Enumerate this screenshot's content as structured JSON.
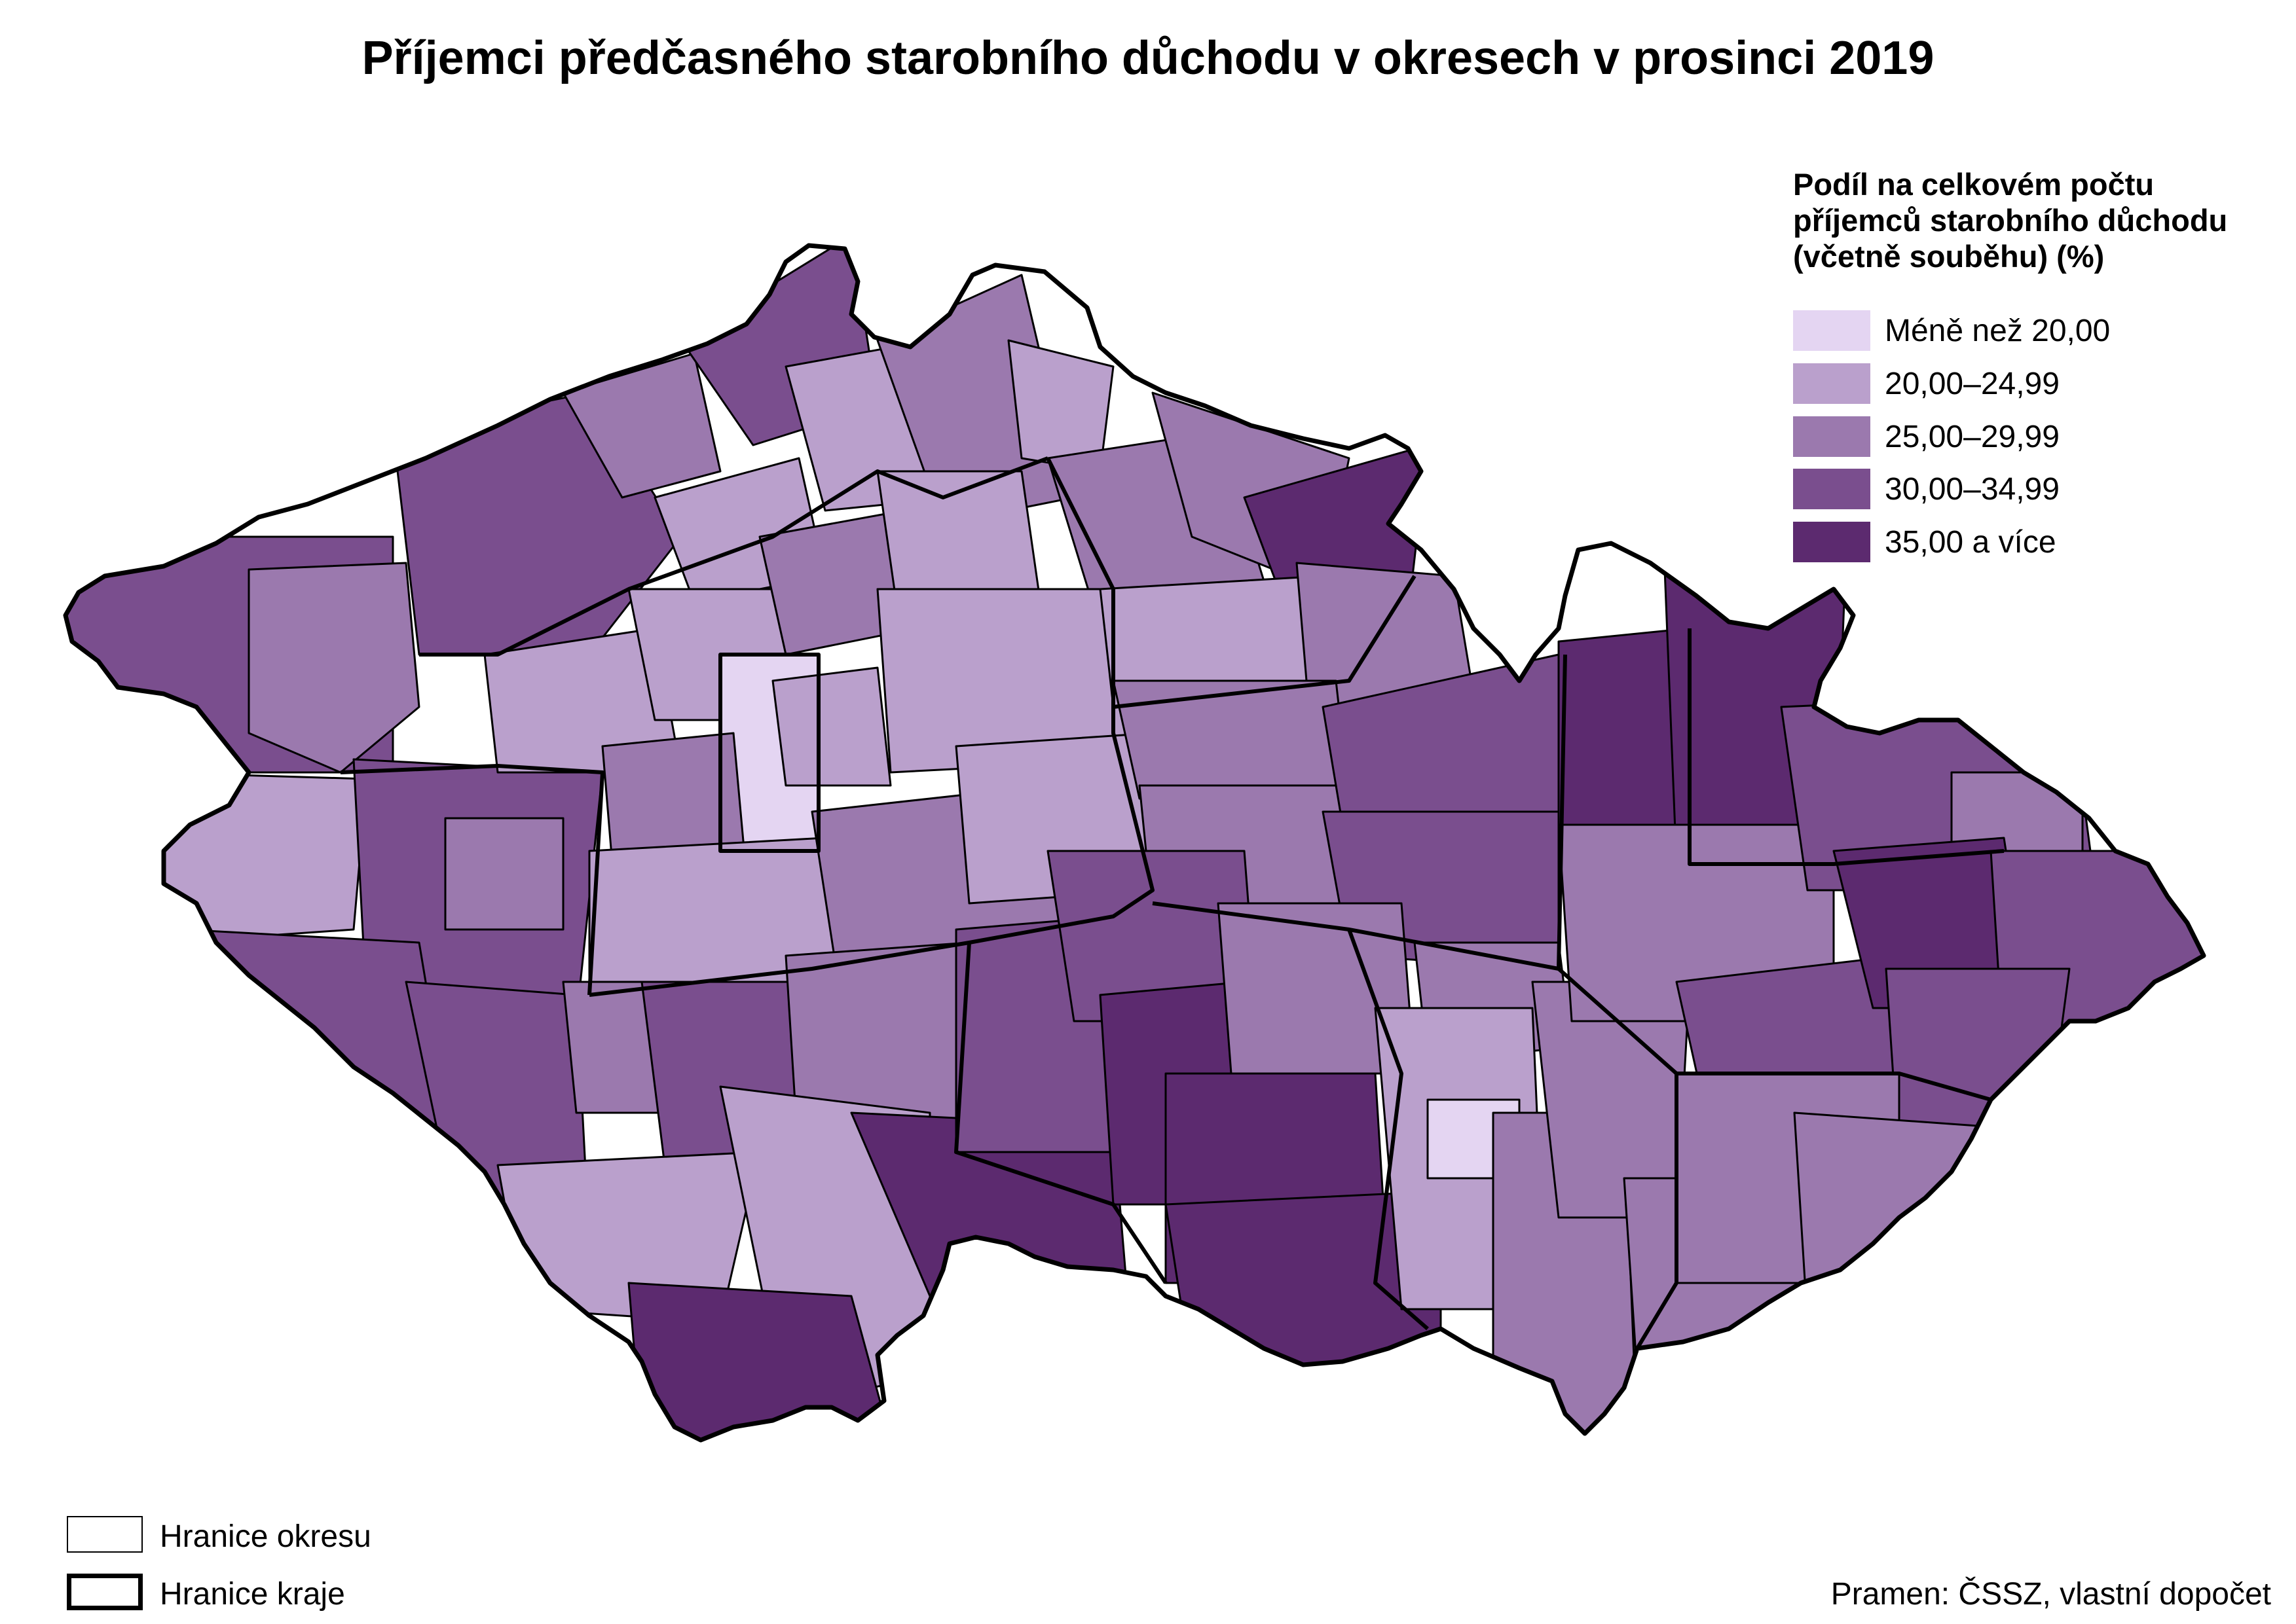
{
  "title": "Příjemci předčasného starobního důchodu v okresech v prosinci 2019",
  "legend": {
    "title_lines": [
      "Podíl na celkovém počtu",
      "příjemců starobního důchodu",
      "(včetně souběhu) (%)"
    ],
    "classes": [
      {
        "label": "Méně než 20,00",
        "color": "#e4d5f2"
      },
      {
        "label": "20,00–24,99",
        "color": "#baa0cc"
      },
      {
        "label": "25,00–29,99",
        "color": "#9b79ae"
      },
      {
        "label": "30,00–34,99",
        "color": "#7a4e8e"
      },
      {
        "label": "35,00 a více",
        "color": "#5c2a6f"
      }
    ]
  },
  "boundaries": {
    "district": "Hranice okresu",
    "region": "Hranice kraje"
  },
  "source": "Pramen: ČSSZ, vlastní dopočet"
}
